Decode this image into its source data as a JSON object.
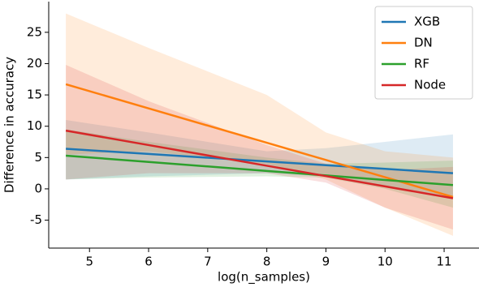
{
  "chart_data": {
    "type": "line",
    "x_label": "log(n_samples)",
    "y_label": "Difference in accuracy",
    "x": [
      4.6,
      6,
      8,
      9,
      10,
      11.15
    ],
    "xlim": [
      4.31,
      11.59
    ],
    "ylim": [
      -9.46,
      29.9
    ],
    "xticks": [
      5,
      6,
      7,
      8,
      9,
      10,
      11
    ],
    "yticks": [
      -5,
      0,
      5,
      10,
      15,
      20,
      25
    ],
    "grid": false,
    "legend": "upper right",
    "series": [
      {
        "name": "XGB",
        "color": "#1f77b4",
        "values": [
          6.4,
          5.57,
          4.38,
          3.78,
          3.19,
          2.5
        ],
        "lower": [
          1.5,
          2.0,
          2.5,
          2.0,
          0.5,
          -1.5
        ],
        "upper": [
          11,
          9,
          6,
          6.5,
          7.5,
          8.7
        ]
      },
      {
        "name": "DN",
        "color": "#ff7f0e",
        "values": [
          16.7,
          12.85,
          7.36,
          4.61,
          1.86,
          -1.3
        ],
        "lower": [
          5.5,
          6,
          4,
          1.5,
          -3,
          -7.5
        ],
        "upper": [
          28,
          22.5,
          15,
          9,
          6,
          5
        ]
      },
      {
        "name": "RF",
        "color": "#2ca02c",
        "values": [
          5.3,
          4.3,
          2.86,
          2.14,
          1.42,
          0.6
        ],
        "lower": [
          1.5,
          1.8,
          2,
          1.8,
          0,
          -3
        ],
        "upper": [
          9.5,
          7.5,
          5,
          4,
          4.2,
          4.5
        ]
      },
      {
        "name": "Node",
        "color": "#d62728",
        "values": [
          9.3,
          6.99,
          3.69,
          2.04,
          0.4,
          -1.5
        ],
        "lower": [
          1.5,
          2.5,
          2.5,
          1,
          -3,
          -6.5
        ],
        "upper": [
          19.8,
          14,
          7,
          4,
          3,
          3.5
        ]
      }
    ]
  }
}
